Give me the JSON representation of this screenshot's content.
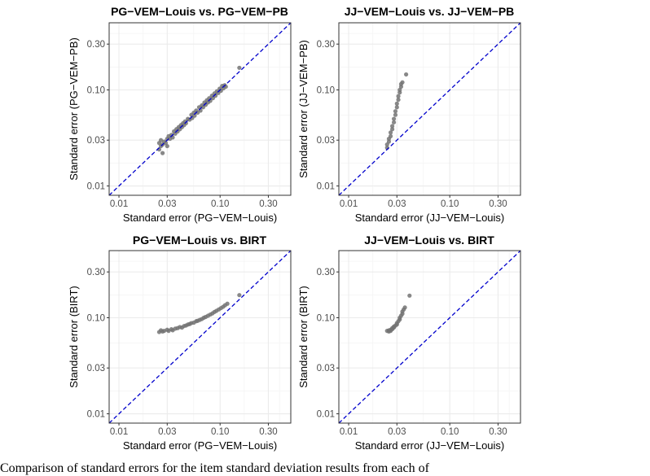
{
  "figure": {
    "caption": "Comparison of standard errors for the item standard deviation results from each of"
  },
  "colors": {
    "points": "#737373",
    "diagonal": "#0000cc",
    "grid_major": "#ebebeb",
    "grid_minor": "#f4f4f4",
    "panel_border": "#333333",
    "axis_text": "#4d4d4d"
  },
  "chart_data": [
    {
      "type": "scatter",
      "title": "PG−VEM−Louis vs. PG−VEM−PB",
      "xlabel": "Standard error (PG−VEM−Louis)",
      "ylabel": "Standard error (PG−VEM−PB)",
      "scale": "log10",
      "xlim": [
        0.008,
        0.5
      ],
      "ylim": [
        0.008,
        0.5
      ],
      "xticks": [
        0.01,
        0.03,
        0.1,
        0.3
      ],
      "yticks": [
        0.01,
        0.03,
        0.1,
        0.3
      ],
      "xtick_labels": [
        "0.01",
        "0.03",
        "0.10",
        "0.30"
      ],
      "ytick_labels": [
        "0.01",
        "0.03",
        "0.10",
        "0.30"
      ],
      "grid": true,
      "reference_line": "y = x",
      "points": [
        [
          0.025,
          0.024
        ],
        [
          0.025,
          0.028
        ],
        [
          0.026,
          0.03
        ],
        [
          0.026,
          0.026
        ],
        [
          0.027,
          0.027
        ],
        [
          0.027,
          0.022
        ],
        [
          0.028,
          0.029
        ],
        [
          0.029,
          0.028
        ],
        [
          0.03,
          0.031
        ],
        [
          0.03,
          0.026
        ],
        [
          0.031,
          0.033
        ],
        [
          0.032,
          0.031
        ],
        [
          0.033,
          0.034
        ],
        [
          0.034,
          0.032
        ],
        [
          0.035,
          0.037
        ],
        [
          0.036,
          0.035
        ],
        [
          0.037,
          0.039
        ],
        [
          0.038,
          0.037
        ],
        [
          0.039,
          0.041
        ],
        [
          0.04,
          0.039
        ],
        [
          0.041,
          0.043
        ],
        [
          0.042,
          0.041
        ],
        [
          0.043,
          0.045
        ],
        [
          0.044,
          0.043
        ],
        [
          0.045,
          0.047
        ],
        [
          0.046,
          0.045
        ],
        [
          0.048,
          0.05
        ],
        [
          0.05,
          0.049
        ],
        [
          0.052,
          0.055
        ],
        [
          0.053,
          0.051
        ],
        [
          0.055,
          0.058
        ],
        [
          0.056,
          0.054
        ],
        [
          0.058,
          0.061
        ],
        [
          0.06,
          0.058
        ],
        [
          0.062,
          0.066
        ],
        [
          0.064,
          0.061
        ],
        [
          0.066,
          0.069
        ],
        [
          0.068,
          0.066
        ],
        [
          0.07,
          0.074
        ],
        [
          0.072,
          0.07
        ],
        [
          0.074,
          0.078
        ],
        [
          0.076,
          0.074
        ],
        [
          0.078,
          0.082
        ],
        [
          0.08,
          0.077
        ],
        [
          0.083,
          0.087
        ],
        [
          0.085,
          0.082
        ],
        [
          0.088,
          0.092
        ],
        [
          0.09,
          0.087
        ],
        [
          0.093,
          0.097
        ],
        [
          0.096,
          0.093
        ],
        [
          0.099,
          0.103
        ],
        [
          0.102,
          0.098
        ],
        [
          0.105,
          0.11
        ],
        [
          0.108,
          0.104
        ],
        [
          0.111,
          0.112
        ],
        [
          0.114,
          0.108
        ],
        [
          0.155,
          0.17
        ]
      ]
    },
    {
      "type": "scatter",
      "title": "JJ−VEM−Louis vs. JJ−VEM−PB",
      "xlabel": "Standard error (JJ−VEM−Louis)",
      "ylabel": "Standard error (JJ−VEM−PB)",
      "scale": "log10",
      "xlim": [
        0.008,
        0.5
      ],
      "ylim": [
        0.008,
        0.5
      ],
      "xticks": [
        0.01,
        0.03,
        0.1,
        0.3
      ],
      "yticks": [
        0.01,
        0.03,
        0.1,
        0.3
      ],
      "xtick_labels": [
        "0.01",
        "0.03",
        "0.10",
        "0.30"
      ],
      "ytick_labels": [
        "0.01",
        "0.03",
        "0.10",
        "0.30"
      ],
      "grid": true,
      "reference_line": "y = x",
      "points": [
        [
          0.024,
          0.025
        ],
        [
          0.024,
          0.027
        ],
        [
          0.025,
          0.029
        ],
        [
          0.025,
          0.031
        ],
        [
          0.026,
          0.033
        ],
        [
          0.026,
          0.036
        ],
        [
          0.027,
          0.039
        ],
        [
          0.027,
          0.042
        ],
        [
          0.028,
          0.046
        ],
        [
          0.028,
          0.05
        ],
        [
          0.029,
          0.055
        ],
        [
          0.029,
          0.06
        ],
        [
          0.03,
          0.066
        ],
        [
          0.03,
          0.072
        ],
        [
          0.031,
          0.079
        ],
        [
          0.031,
          0.086
        ],
        [
          0.032,
          0.094
        ],
        [
          0.032,
          0.1
        ],
        [
          0.033,
          0.108
        ],
        [
          0.033,
          0.115
        ],
        [
          0.034,
          0.12
        ],
        [
          0.037,
          0.145
        ]
      ]
    },
    {
      "type": "scatter",
      "title": "PG−VEM−Louis vs. BIRT",
      "xlabel": "Standard error  (PG−VEM−Louis)",
      "ylabel": "Standard error  (BIRT)",
      "scale": "log10",
      "xlim": [
        0.008,
        0.5
      ],
      "ylim": [
        0.008,
        0.5
      ],
      "xticks": [
        0.01,
        0.03,
        0.1,
        0.3
      ],
      "yticks": [
        0.01,
        0.03,
        0.1,
        0.3
      ],
      "xtick_labels": [
        "0.01",
        "0.03",
        "0.10",
        "0.30"
      ],
      "ytick_labels": [
        "0.01",
        "0.03",
        "0.10",
        "0.30"
      ],
      "grid": true,
      "reference_line": "y = x",
      "points": [
        [
          0.025,
          0.071
        ],
        [
          0.026,
          0.074
        ],
        [
          0.027,
          0.072
        ],
        [
          0.028,
          0.073
        ],
        [
          0.03,
          0.075
        ],
        [
          0.031,
          0.073
        ],
        [
          0.033,
          0.076
        ],
        [
          0.034,
          0.074
        ],
        [
          0.036,
          0.077
        ],
        [
          0.038,
          0.078
        ],
        [
          0.04,
          0.08
        ],
        [
          0.042,
          0.079
        ],
        [
          0.044,
          0.082
        ],
        [
          0.046,
          0.083
        ],
        [
          0.048,
          0.085
        ],
        [
          0.05,
          0.086
        ],
        [
          0.052,
          0.088
        ],
        [
          0.055,
          0.089
        ],
        [
          0.058,
          0.092
        ],
        [
          0.06,
          0.093
        ],
        [
          0.063,
          0.095
        ],
        [
          0.066,
          0.097
        ],
        [
          0.069,
          0.1
        ],
        [
          0.072,
          0.102
        ],
        [
          0.076,
          0.105
        ],
        [
          0.08,
          0.108
        ],
        [
          0.084,
          0.111
        ],
        [
          0.088,
          0.115
        ],
        [
          0.092,
          0.118
        ],
        [
          0.097,
          0.122
        ],
        [
          0.102,
          0.126
        ],
        [
          0.107,
          0.13
        ],
        [
          0.112,
          0.135
        ],
        [
          0.118,
          0.14
        ],
        [
          0.155,
          0.172
        ]
      ]
    },
    {
      "type": "scatter",
      "title": "JJ−VEM−Louis vs. BIRT",
      "xlabel": "Standard error (JJ−VEM−Louis)",
      "ylabel": "Standard error (BIRT)",
      "scale": "log10",
      "xlim": [
        0.008,
        0.5
      ],
      "ylim": [
        0.008,
        0.5
      ],
      "xticks": [
        0.01,
        0.03,
        0.1,
        0.3
      ],
      "yticks": [
        0.01,
        0.03,
        0.1,
        0.3
      ],
      "xtick_labels": [
        "0.01",
        "0.03",
        "0.10",
        "0.30"
      ],
      "ytick_labels": [
        "0.01",
        "0.03",
        "0.10",
        "0.30"
      ],
      "grid": true,
      "reference_line": "y = x",
      "points": [
        [
          0.024,
          0.073
        ],
        [
          0.025,
          0.074
        ],
        [
          0.025,
          0.072
        ],
        [
          0.026,
          0.075
        ],
        [
          0.026,
          0.073
        ],
        [
          0.027,
          0.076
        ],
        [
          0.027,
          0.078
        ],
        [
          0.028,
          0.079
        ],
        [
          0.028,
          0.081
        ],
        [
          0.029,
          0.083
        ],
        [
          0.03,
          0.085
        ],
        [
          0.03,
          0.088
        ],
        [
          0.031,
          0.092
        ],
        [
          0.032,
          0.096
        ],
        [
          0.032,
          0.1
        ],
        [
          0.033,
          0.105
        ],
        [
          0.034,
          0.11
        ],
        [
          0.034,
          0.116
        ],
        [
          0.035,
          0.122
        ],
        [
          0.036,
          0.128
        ],
        [
          0.04,
          0.17
        ]
      ]
    }
  ]
}
